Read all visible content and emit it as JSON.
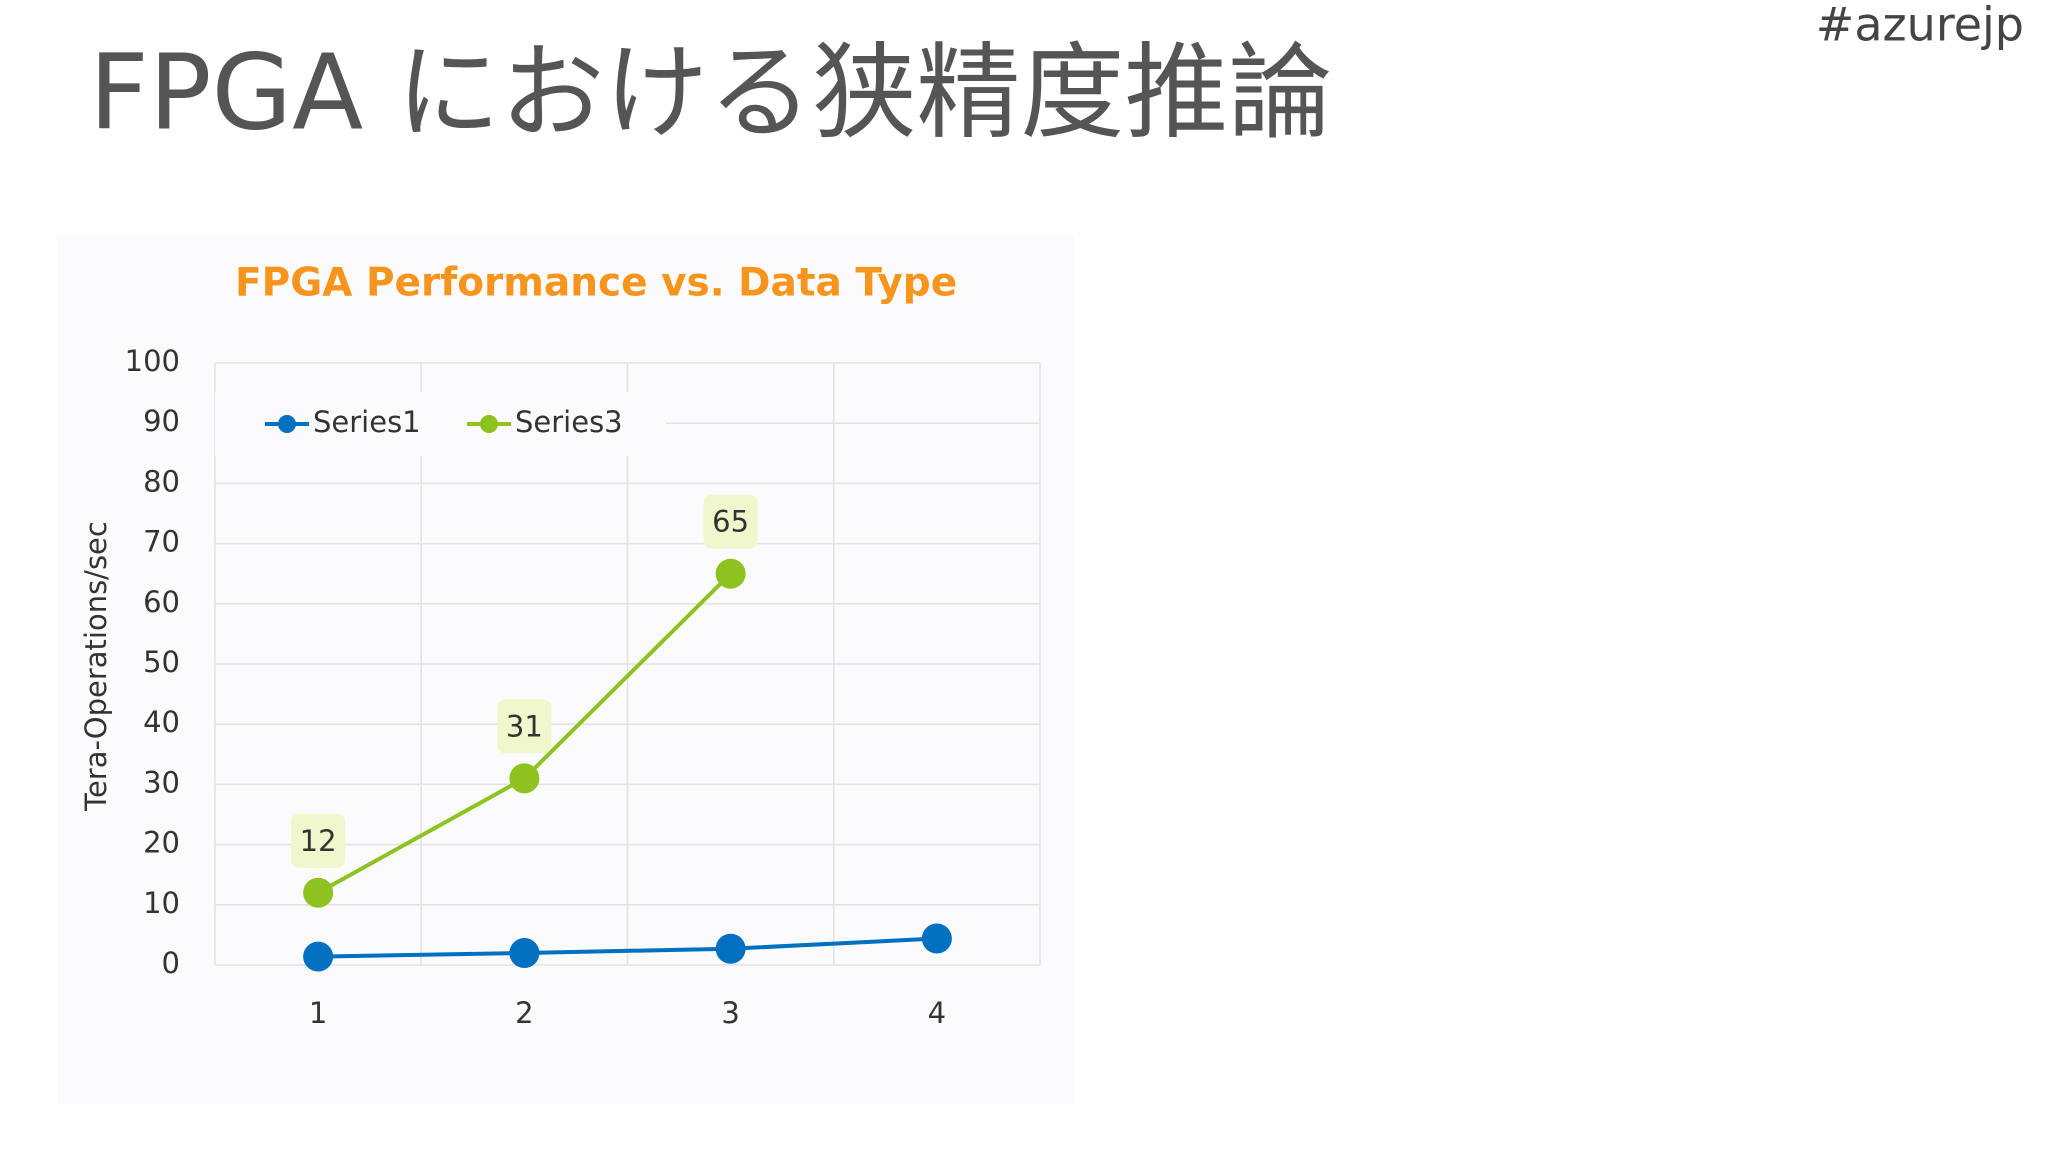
{
  "header": {
    "title": "FPGA における狭精度推論",
    "tag": "#azurejp"
  },
  "chart_data": {
    "type": "line",
    "title": "FPGA Performance vs. Data Type",
    "y_label": "Tera-Operations/sec",
    "categories": [
      "1",
      "2",
      "3",
      "4"
    ],
    "series": [
      {
        "name": "Series1",
        "color": "#0070c0",
        "values": [
          1.4,
          2,
          2.7,
          4.4
        ],
        "data_labels": false
      },
      {
        "name": "Series3",
        "color": "#8dc21f",
        "values": [
          12,
          31,
          65,
          null
        ],
        "data_labels": true
      }
    ],
    "ylim": [
      0,
      100
    ],
    "yticks": [
      0,
      10,
      20,
      30,
      40,
      50,
      60,
      70,
      80,
      90,
      100
    ],
    "grid": true,
    "legend": "top-left"
  }
}
